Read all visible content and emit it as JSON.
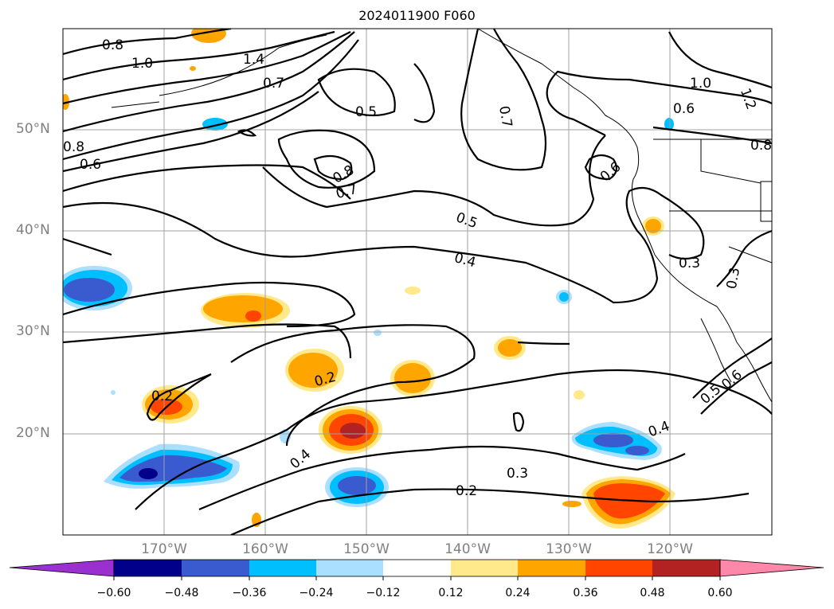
{
  "title": "2024011900 F060",
  "map": {
    "lat_labels": [
      {
        "text": "50°N",
        "lat": 50
      },
      {
        "text": "40°N",
        "lat": 40
      },
      {
        "text": "30°N",
        "lat": 30
      },
      {
        "text": "20°N",
        "lat": 20
      }
    ],
    "lon_labels": [
      {
        "text": "170°W",
        "lon": -170
      },
      {
        "text": "160°W",
        "lon": -160
      },
      {
        "text": "150°W",
        "lon": -150
      },
      {
        "text": "140°W",
        "lon": -140
      },
      {
        "text": "130°W",
        "lon": -130
      },
      {
        "text": "120°W",
        "lon": -120
      }
    ],
    "lat_range": [
      10,
      60
    ],
    "lon_range": [
      -180,
      -110
    ],
    "grid": true,
    "contour_labels": [
      "0.8",
      "1.0",
      "1.4",
      "0.7",
      "0.5",
      "0.7",
      "1.0",
      "1.2",
      "0.6",
      "0.6",
      "0.8",
      "0.8",
      "0.6",
      "0.8",
      "0.7",
      "0.5",
      "0.4",
      "0.3",
      "0.3",
      "0.2",
      "0.2",
      "0.4",
      "0.3",
      "0.2",
      "0.4",
      "0.5",
      "0.6"
    ]
  },
  "colorbar": {
    "ticks": [
      "−0.60",
      "−0.48",
      "−0.36",
      "−0.24",
      "−0.12",
      "0.12",
      "0.24",
      "0.36",
      "0.48",
      "0.60"
    ],
    "colors": [
      "#9b30d0",
      "#00008b",
      "#3a5bd0",
      "#00bfff",
      "#aadfff",
      "#ffffff",
      "#ffe98a",
      "#ffa500",
      "#ff4500",
      "#b22222",
      "#ff88aa"
    ],
    "extend": "both"
  }
}
